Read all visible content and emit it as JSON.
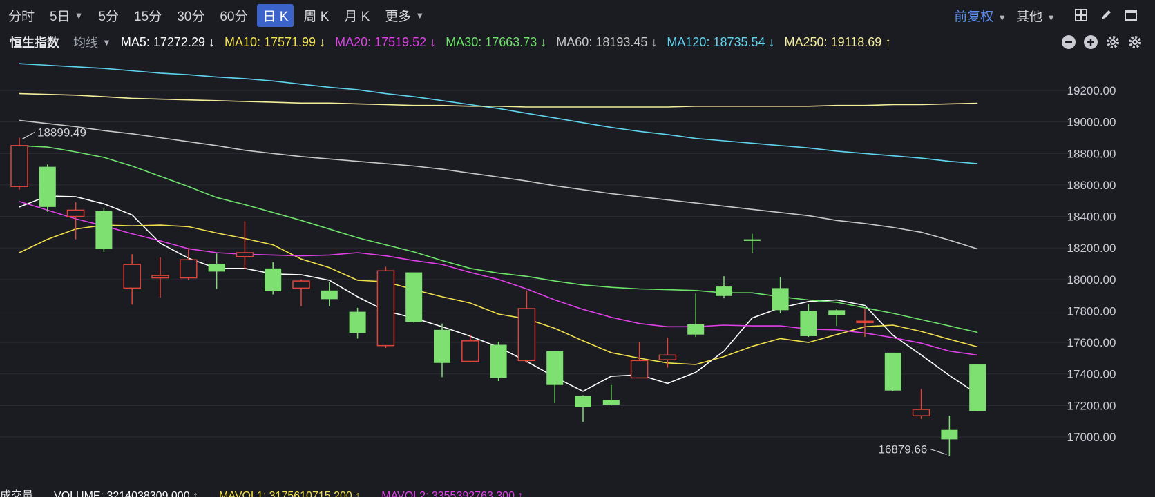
{
  "toolbar": {
    "periods": [
      {
        "label": "分时",
        "active": false,
        "caret": false
      },
      {
        "label": "5日",
        "active": false,
        "caret": true
      },
      {
        "label": "5分",
        "active": false,
        "caret": false
      },
      {
        "label": "15分",
        "active": false,
        "caret": false
      },
      {
        "label": "30分",
        "active": false,
        "caret": false
      },
      {
        "label": "60分",
        "active": false,
        "caret": false
      },
      {
        "label": "日 K",
        "active": true,
        "caret": false
      },
      {
        "label": "周 K",
        "active": false,
        "caret": false
      },
      {
        "label": "月 K",
        "active": false,
        "caret": false
      },
      {
        "label": "更多",
        "active": false,
        "caret": true
      }
    ],
    "adjust": "前复权",
    "other": "其他",
    "icons": [
      "grid-icon",
      "pen-icon",
      "window-icon"
    ]
  },
  "legend": {
    "index_name": "恒生指数",
    "avg_label": "均线",
    "ma": [
      {
        "label": "MA5: 17272.29 ↓",
        "color": "#ffffff"
      },
      {
        "label": "MA10: 17571.99 ↓",
        "color": "#f2e04a"
      },
      {
        "label": "MA20: 17519.52 ↓",
        "color": "#e040e8"
      },
      {
        "label": "MA30: 17663.73 ↓",
        "color": "#6ee36a"
      },
      {
        "label": "MA60: 18193.45 ↓",
        "color": "#c8c8c8"
      },
      {
        "label": "MA120: 18735.54 ↓",
        "color": "#5fd4ee"
      },
      {
        "label": "MA250: 19118.69 ↑",
        "color": "#f4ee9a"
      }
    ],
    "controls": [
      "minus-circle-icon",
      "plus-circle-icon",
      "gear-icon",
      "settings-icon"
    ]
  },
  "colors": {
    "up": "#e0453a",
    "down": "#7ee070",
    "grid": "#2b2d35",
    "axis_text": "#c9ccd3",
    "background": "#1b1c22"
  },
  "chart_data": {
    "type": "candlestick",
    "ylim": [
      16800,
      19450
    ],
    "yticks": [
      17000,
      17200,
      17400,
      17600,
      17800,
      18000,
      18200,
      18400,
      18600,
      18800,
      19000,
      19200
    ],
    "ytick_labels": [
      "17000.00",
      "17200.00",
      "17400.00",
      "17600.00",
      "17800.00",
      "18000.00",
      "18200.00",
      "18400.00",
      "18600.00",
      "18800.00",
      "19000.00",
      "19200.00"
    ],
    "candles": [
      {
        "open": 18590,
        "close": 18850,
        "high": 18899.49,
        "low": 18570
      },
      {
        "open": 18715,
        "close": 18460,
        "high": 18730,
        "low": 18430
      },
      {
        "open": 18400,
        "close": 18440,
        "high": 18490,
        "low": 18255
      },
      {
        "open": 18435,
        "close": 18195,
        "high": 18450,
        "low": 18175
      },
      {
        "open": 17945,
        "close": 18095,
        "high": 18160,
        "low": 17840
      },
      {
        "open": 18010,
        "close": 18025,
        "high": 18140,
        "low": 17885
      },
      {
        "open": 18010,
        "close": 18125,
        "high": 18200,
        "low": 17995
      },
      {
        "open": 18100,
        "close": 18050,
        "high": 18165,
        "low": 17940
      },
      {
        "open": 18145,
        "close": 18170,
        "high": 18370,
        "low": 18065
      },
      {
        "open": 18070,
        "close": 17925,
        "high": 18110,
        "low": 17905
      },
      {
        "open": 17945,
        "close": 17990,
        "high": 18000,
        "low": 17830
      },
      {
        "open": 17930,
        "close": 17875,
        "high": 17985,
        "low": 17830
      },
      {
        "open": 17795,
        "close": 17660,
        "high": 17820,
        "low": 17625
      },
      {
        "open": 17580,
        "close": 18055,
        "high": 18080,
        "low": 17565
      },
      {
        "open": 18045,
        "close": 17730,
        "high": 18045,
        "low": 17725
      },
      {
        "open": 17680,
        "close": 17470,
        "high": 17720,
        "low": 17380
      },
      {
        "open": 17480,
        "close": 17610,
        "high": 17650,
        "low": 17475
      },
      {
        "open": 17585,
        "close": 17375,
        "high": 17605,
        "low": 17355
      },
      {
        "open": 17485,
        "close": 17815,
        "high": 17930,
        "low": 17470
      },
      {
        "open": 17545,
        "close": 17330,
        "high": 17545,
        "low": 17215
      },
      {
        "open": 17260,
        "close": 17190,
        "high": 17265,
        "low": 17095
      },
      {
        "open": 17235,
        "close": 17205,
        "high": 17330,
        "low": 17200
      },
      {
        "open": 17375,
        "close": 17485,
        "high": 17600,
        "low": 17375
      },
      {
        "open": 17490,
        "close": 17520,
        "high": 17630,
        "low": 17440
      },
      {
        "open": 17715,
        "close": 17650,
        "high": 17910,
        "low": 17635
      },
      {
        "open": 17955,
        "close": 17895,
        "high": 18020,
        "low": 17880
      },
      {
        "open": 18255,
        "close": 18245,
        "high": 18290,
        "low": 18170
      },
      {
        "open": 17945,
        "close": 17805,
        "high": 18015,
        "low": 17785
      },
      {
        "open": 17800,
        "close": 17640,
        "high": 17845,
        "low": 17635
      },
      {
        "open": 17805,
        "close": 17775,
        "high": 17815,
        "low": 17705
      },
      {
        "open": 17735,
        "close": 17735,
        "high": 17815,
        "low": 17635
      },
      {
        "open": 17535,
        "close": 17295,
        "high": 17535,
        "low": 17290
      },
      {
        "open": 17135,
        "close": 17175,
        "high": 17305,
        "low": 17115
      },
      {
        "open": 17045,
        "close": 16985,
        "high": 17135,
        "low": 16879.66
      },
      {
        "open": 17460,
        "close": 17165,
        "high": 17460,
        "low": 17165
      }
    ],
    "ma_lines": [
      {
        "name": "MA5",
        "color": "#ffffff",
        "values": [
          18460,
          18530,
          18525,
          18480,
          18410,
          18230,
          18135,
          18070,
          18070,
          18035,
          18030,
          17995,
          17890,
          17800,
          17755,
          17700,
          17640,
          17570,
          17480,
          17380,
          17290,
          17385,
          17395,
          17340,
          17410,
          17545,
          17755,
          17820,
          17860,
          17870,
          17835,
          17645,
          17520,
          17390,
          17272.29
        ]
      },
      {
        "name": "MA10",
        "color": "#f2e04a",
        "values": [
          18170,
          18255,
          18320,
          18345,
          18340,
          18345,
          18335,
          18295,
          18260,
          18220,
          18130,
          18075,
          17995,
          17985,
          17935,
          17890,
          17850,
          17780,
          17750,
          17690,
          17610,
          17535,
          17500,
          17470,
          17460,
          17510,
          17575,
          17625,
          17600,
          17650,
          17700,
          17710,
          17670,
          17620,
          17571.99
        ]
      },
      {
        "name": "MA20",
        "color": "#e040e8",
        "values": [
          18495,
          18440,
          18385,
          18340,
          18290,
          18245,
          18195,
          18170,
          18160,
          18155,
          18150,
          18155,
          18170,
          18150,
          18120,
          18095,
          18045,
          18000,
          17940,
          17870,
          17810,
          17760,
          17720,
          17700,
          17700,
          17710,
          17705,
          17705,
          17685,
          17680,
          17660,
          17630,
          17595,
          17545,
          17519.52
        ]
      },
      {
        "name": "MA30",
        "color": "#6ee36a",
        "values": [
          18850,
          18840,
          18810,
          18775,
          18720,
          18655,
          18590,
          18520,
          18475,
          18425,
          18375,
          18320,
          18265,
          18220,
          18175,
          18120,
          18070,
          18040,
          18020,
          17990,
          17965,
          17950,
          17940,
          17935,
          17930,
          17915,
          17915,
          17890,
          17870,
          17855,
          17820,
          17785,
          17745,
          17705,
          17663.73
        ]
      },
      {
        "name": "MA60",
        "color": "#c8c8c8",
        "values": [
          19010,
          18990,
          18970,
          18945,
          18925,
          18900,
          18875,
          18850,
          18820,
          18800,
          18780,
          18765,
          18750,
          18735,
          18720,
          18700,
          18675,
          18650,
          18625,
          18595,
          18570,
          18545,
          18525,
          18505,
          18485,
          18465,
          18445,
          18425,
          18405,
          18375,
          18355,
          18330,
          18300,
          18250,
          18193.45
        ]
      },
      {
        "name": "MA120",
        "color": "#5fd4ee",
        "values": [
          19370,
          19360,
          19350,
          19340,
          19325,
          19310,
          19300,
          19285,
          19275,
          19260,
          19240,
          19220,
          19205,
          19180,
          19160,
          19135,
          19110,
          19085,
          19055,
          19025,
          18995,
          18965,
          18940,
          18920,
          18895,
          18880,
          18865,
          18850,
          18835,
          18815,
          18800,
          18785,
          18770,
          18750,
          18735.54
        ]
      },
      {
        "name": "MA250",
        "color": "#f4ee9a",
        "values": [
          19180,
          19175,
          19170,
          19160,
          19150,
          19145,
          19140,
          19135,
          19130,
          19125,
          19120,
          19120,
          19115,
          19110,
          19105,
          19105,
          19100,
          19100,
          19095,
          19095,
          19095,
          19095,
          19095,
          19095,
          19100,
          19100,
          19100,
          19100,
          19100,
          19105,
          19105,
          19110,
          19110,
          19115,
          19118.69
        ]
      }
    ],
    "annotations": [
      {
        "label": "18899.49",
        "candle": 0,
        "value": 18899.49,
        "side": "right"
      },
      {
        "label": "16879.66",
        "candle": 33,
        "value": 16879.66,
        "side": "left"
      }
    ]
  },
  "volume_legend": [
    {
      "label": "成交量",
      "color": "#e8e9ec"
    },
    {
      "label": "VOLUME: 3214038309.000 ↑",
      "color": "#ffffff"
    },
    {
      "label": "MAVOL1: 3175610715.200 ↑",
      "color": "#f2e04a"
    },
    {
      "label": "MAVOL2: 3355392763.300 ↑",
      "color": "#e040e8"
    }
  ]
}
